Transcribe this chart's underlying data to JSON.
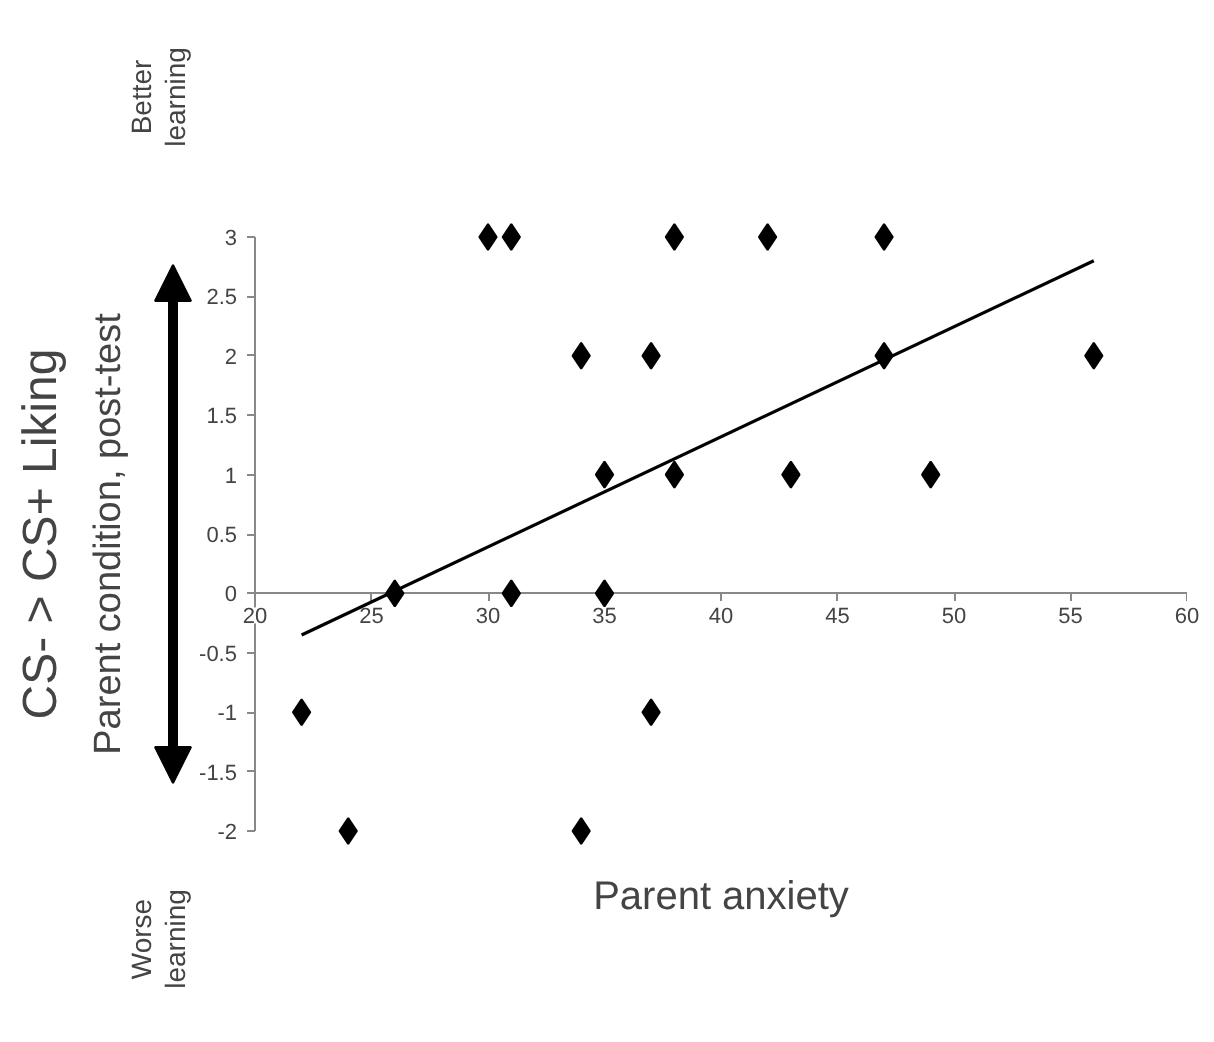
{
  "chart_data": {
    "type": "scatter",
    "xlabel": "Parent anxiety",
    "ylabel": "CS- > CS+ Liking\nParent condition, post-test",
    "annotations": [
      "Better\nlearning",
      "Worse\nlearning"
    ],
    "series": [
      {
        "color": "#000000",
        "marker": "diamond",
        "x": [
          30,
          31,
          38,
          42,
          47,
          34,
          37,
          47,
          56,
          35,
          38,
          43,
          49,
          26,
          31,
          35,
          22,
          37,
          24,
          34
        ],
        "values": [
          3,
          3,
          3,
          3,
          3,
          2,
          2,
          2,
          2,
          1,
          1,
          1,
          1,
          0,
          0,
          0,
          -1,
          -1,
          -2,
          -2
        ]
      },
      {
        "type": "line",
        "color": "#000000",
        "line_style": "solid",
        "x": [
          22,
          56
        ],
        "values": [
          -0.35,
          2.8
        ]
      }
    ],
    "xlim": [
      20,
      60
    ],
    "xticks": [
      20,
      25,
      30,
      35,
      40,
      45,
      50,
      55,
      60
    ],
    "ylim": [
      -2,
      3
    ],
    "yticks": [
      -2,
      -1.5,
      -1,
      -0.5,
      0,
      0.5,
      1,
      1.5,
      2,
      2.5,
      3
    ],
    "grid": false
  }
}
